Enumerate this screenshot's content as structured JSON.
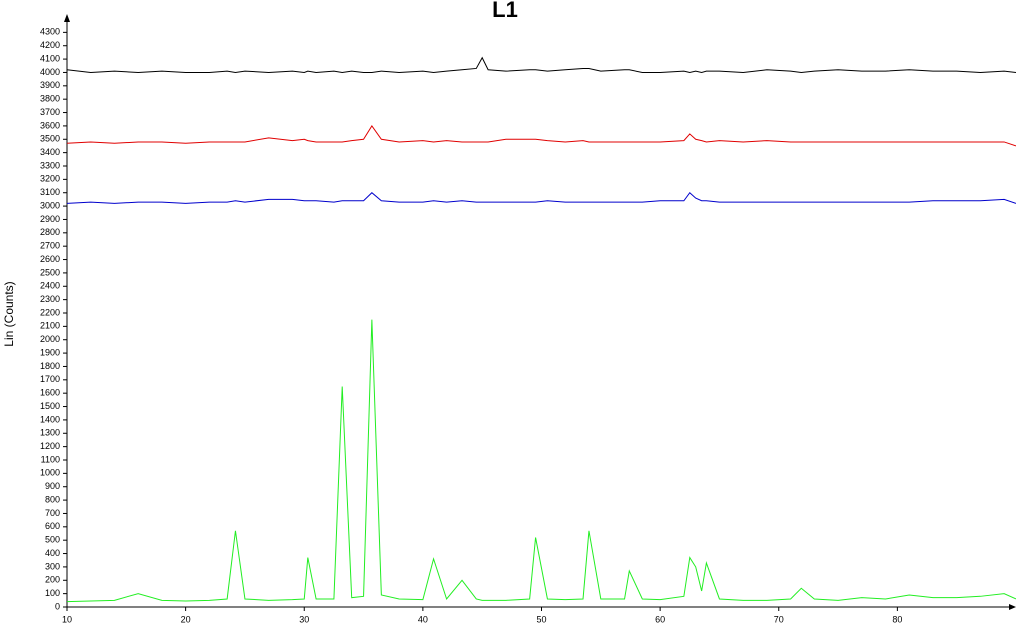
{
  "chart_data": {
    "type": "line",
    "title": "L1",
    "y_label": "Lin (Counts)",
    "x": [
      10,
      12,
      14,
      16,
      18,
      20,
      22,
      23.5,
      24.2,
      25,
      27,
      29,
      30,
      30.3,
      31,
      32.5,
      33.2,
      34,
      35,
      35.7,
      36.5,
      38,
      40,
      40.9,
      42,
      43.3,
      44.5,
      45,
      45.5,
      47,
      49,
      49.5,
      50.5,
      52,
      53.5,
      54,
      55,
      57,
      57.4,
      58.5,
      60,
      62,
      62.5,
      63,
      63.5,
      63.9,
      65,
      67,
      69,
      71,
      71.9,
      73,
      75,
      77,
      79,
      81,
      83,
      85,
      87,
      89,
      90
    ],
    "series": [
      {
        "color": "#000000",
        "values": [
          4020,
          4000,
          4010,
          4000,
          4010,
          4000,
          4000,
          4010,
          4000,
          4010,
          4000,
          4010,
          4000,
          4010,
          4000,
          4010,
          4000,
          4010,
          4000,
          4000,
          4010,
          4000,
          4010,
          4000,
          4010,
          4020,
          4030,
          4110,
          4020,
          4010,
          4020,
          4020,
          4010,
          4020,
          4030,
          4030,
          4010,
          4020,
          4020,
          4000,
          4000,
          4010,
          4000,
          4010,
          4000,
          4010,
          4010,
          4000,
          4020,
          4010,
          4000,
          4010,
          4020,
          4010,
          4010,
          4020,
          4010,
          4010,
          4000,
          4010,
          4000
        ]
      },
      {
        "color": "#e00000",
        "values": [
          3470,
          3480,
          3470,
          3480,
          3480,
          3470,
          3480,
          3480,
          3480,
          3480,
          3510,
          3490,
          3500,
          3490,
          3480,
          3480,
          3480,
          3490,
          3500,
          3600,
          3500,
          3480,
          3490,
          3480,
          3490,
          3480,
          3480,
          3480,
          3480,
          3500,
          3500,
          3500,
          3490,
          3480,
          3490,
          3480,
          3480,
          3480,
          3480,
          3480,
          3480,
          3490,
          3540,
          3500,
          3490,
          3480,
          3490,
          3480,
          3490,
          3480,
          3480,
          3480,
          3480,
          3480,
          3480,
          3480,
          3480,
          3480,
          3480,
          3480,
          3450
        ]
      },
      {
        "color": "#0000cc",
        "values": [
          3020,
          3030,
          3020,
          3030,
          3030,
          3020,
          3030,
          3030,
          3040,
          3030,
          3050,
          3050,
          3040,
          3040,
          3040,
          3030,
          3040,
          3040,
          3040,
          3100,
          3040,
          3030,
          3030,
          3040,
          3030,
          3040,
          3030,
          3030,
          3030,
          3030,
          3030,
          3030,
          3040,
          3030,
          3030,
          3030,
          3030,
          3030,
          3030,
          3030,
          3040,
          3040,
          3100,
          3060,
          3040,
          3040,
          3030,
          3030,
          3030,
          3030,
          3030,
          3030,
          3030,
          3030,
          3030,
          3030,
          3040,
          3040,
          3040,
          3050,
          3020
        ]
      },
      {
        "color": "#22ee22",
        "values": [
          40,
          45,
          50,
          100,
          50,
          45,
          50,
          60,
          570,
          60,
          50,
          55,
          60,
          370,
          60,
          60,
          1650,
          70,
          80,
          2150,
          90,
          60,
          55,
          360,
          60,
          200,
          60,
          50,
          50,
          50,
          60,
          520,
          60,
          55,
          60,
          570,
          60,
          60,
          270,
          60,
          55,
          80,
          370,
          300,
          120,
          330,
          60,
          50,
          50,
          60,
          140,
          60,
          50,
          70,
          60,
          90,
          70,
          70,
          80,
          100,
          60
        ]
      }
    ],
    "xlim": [
      10,
      90
    ],
    "xticks": [
      10,
      20,
      30,
      40,
      50,
      60,
      70,
      80
    ],
    "ylim": [
      0,
      4400
    ],
    "yticks": [
      0,
      100,
      200,
      300,
      400,
      500,
      600,
      700,
      800,
      900,
      1000,
      1100,
      1200,
      1300,
      1400,
      1500,
      1600,
      1700,
      1800,
      1900,
      2000,
      2100,
      2200,
      2300,
      2400,
      2500,
      2600,
      2700,
      2800,
      2900,
      3000,
      3100,
      3200,
      3300,
      3400,
      3500,
      3600,
      3700,
      3800,
      3900,
      4000,
      4100,
      4200,
      4300
    ]
  }
}
